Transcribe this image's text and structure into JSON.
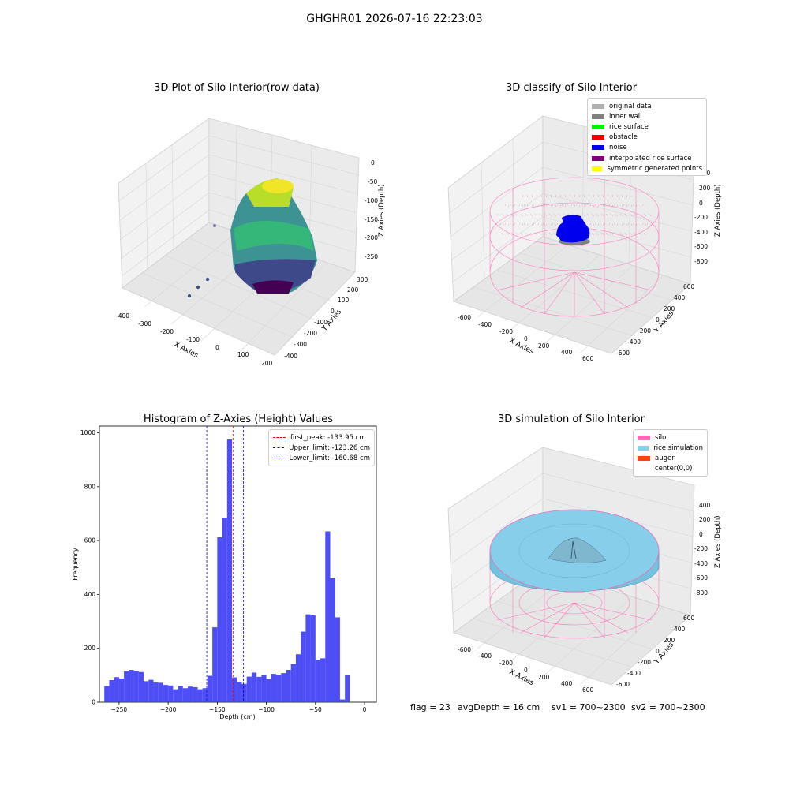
{
  "suptitle": "GHGHR01 2026-07-16 22:23:03",
  "chart_data": [
    {
      "type": "scatter",
      "title": "3D Plot of Silo Interior(row data)",
      "xlabel": "X Axies",
      "ylabel": "Y Axies",
      "zlabel": "Z Axies (Depth)",
      "x_ticks": [
        "-400",
        "-300",
        "-200",
        "-100",
        "0",
        "100",
        "200"
      ],
      "y_ticks": [
        "300",
        "200",
        "100",
        "0",
        "-100",
        "-200",
        "-300",
        "-400"
      ],
      "z_ticks": [
        "0",
        "-50",
        "-100",
        "-150",
        "-200",
        "-250"
      ],
      "colormap": "viridis"
    },
    {
      "type": "scatter",
      "title": "3D classify of Silo Interior",
      "xlabel": "X Axies",
      "ylabel": "Y Axies",
      "zlabel": "Z Axies (Depth)",
      "x_ticks": [
        "-600",
        "-400",
        "-200",
        "0",
        "200",
        "400",
        "600"
      ],
      "y_ticks": [
        "600",
        "400",
        "200",
        "0",
        "-200",
        "-400",
        "-600"
      ],
      "z_ticks": [
        "400",
        "200",
        "0",
        "-200",
        "-400",
        "-600",
        "-800"
      ],
      "legend": [
        {
          "label": "original data",
          "color": "#b0b0b0"
        },
        {
          "label": "inner wall",
          "color": "#808080"
        },
        {
          "label": "rice surface",
          "color": "#00ee00"
        },
        {
          "label": "obstacle",
          "color": "#ee0000"
        },
        {
          "label": "noise",
          "color": "#0000ee"
        },
        {
          "label": "interpolated rice surface",
          "color": "#800080"
        },
        {
          "label": "symmetric generated points",
          "color": "#ffff00"
        }
      ]
    },
    {
      "type": "bar",
      "title": "Histogram of Z-Axies (Height) Values",
      "xlabel": "Depth (cm)",
      "ylabel": "Frequency",
      "xlim": [
        -270,
        12
      ],
      "ylim": [
        0,
        1025
      ],
      "x_ticks": [
        -250,
        -200,
        -150,
        -100,
        -50,
        0
      ],
      "x_tick_labels": [
        "−250",
        "−200",
        "−150",
        "−100",
        "−50",
        "0"
      ],
      "y_ticks": [
        0,
        200,
        400,
        600,
        800,
        1000
      ],
      "bar_color": "#3b3bf5",
      "bin_width": 5,
      "bin_edges_start": -265,
      "values": [
        60,
        82,
        93,
        88,
        115,
        120,
        116,
        112,
        78,
        83,
        73,
        72,
        64,
        62,
        48,
        60,
        52,
        58,
        56,
        48,
        52,
        98,
        278,
        612,
        685,
        975,
        92,
        75,
        68,
        95,
        110,
        94,
        100,
        86,
        105,
        102,
        108,
        120,
        142,
        178,
        262,
        326,
        322,
        158,
        163,
        634,
        460,
        315,
        10,
        100
      ],
      "vlines": [
        {
          "label": "first_peak: -133.95 cm",
          "x": -133.95,
          "color": "#ff0000"
        },
        {
          "label": "Upper_limit: -123.26 cm",
          "x": -123.26,
          "color": "#0000cc"
        },
        {
          "label": "Lower_limit: -160.68 cm",
          "x": -160.68,
          "color": "#0000cc"
        }
      ]
    },
    {
      "type": "scatter",
      "title": "3D simulation of Silo Interior",
      "xlabel": "X Axies",
      "ylabel": "Y Axies",
      "zlabel": "Z Axies (Depth)",
      "x_ticks": [
        "-600",
        "-400",
        "-200",
        "0",
        "200",
        "400",
        "600"
      ],
      "y_ticks": [
        "600",
        "400",
        "200",
        "0",
        "-200",
        "-400",
        "-600"
      ],
      "z_ticks": [
        "400",
        "200",
        "0",
        "-200",
        "-400",
        "-600",
        "-800"
      ],
      "legend": [
        {
          "label": "silo",
          "color": "#ff69b4"
        },
        {
          "label": "rice simulation",
          "color": "#87ceeb"
        },
        {
          "label": "auger",
          "color": "#ff4500"
        },
        {
          "label": "center(0,0)",
          "color": ""
        }
      ]
    }
  ],
  "status": {
    "flag": "flag = 23",
    "avg_depth": "avgDepth = 16 cm",
    "sv1": "sv1 = 700~2300",
    "sv2": "sv2 = 700~2300"
  }
}
